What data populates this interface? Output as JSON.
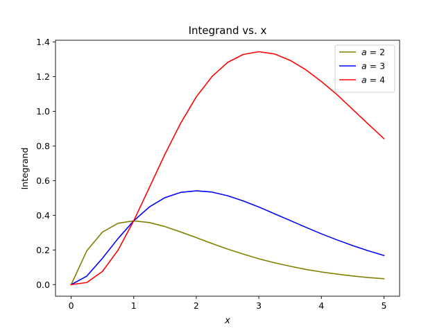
{
  "chart_data": {
    "type": "line",
    "title": "Integrand vs. x",
    "xlabel": "x",
    "ylabel": "Integrand",
    "xlim": [
      -0.25,
      5.25
    ],
    "ylim": [
      -0.067,
      1.41
    ],
    "xticks": [
      0,
      1,
      2,
      3,
      4,
      5
    ],
    "xtick_labels": [
      "0",
      "1",
      "2",
      "3",
      "4",
      "5"
    ],
    "yticks": [
      0.0,
      0.2,
      0.4,
      0.6,
      0.8,
      1.0,
      1.2,
      1.4
    ],
    "ytick_labels": [
      "0.0",
      "0.2",
      "0.4",
      "0.6",
      "0.8",
      "1.0",
      "1.2",
      "1.4"
    ],
    "grid": false,
    "legend_position": "top-right",
    "x": [
      0,
      0.25,
      0.5,
      0.75,
      1,
      1.25,
      1.5,
      1.75,
      2,
      2.25,
      2.5,
      2.75,
      3,
      3.25,
      3.5,
      3.75,
      4,
      4.25,
      4.5,
      4.75,
      5
    ],
    "series": [
      {
        "name": "a = 2",
        "legend_var": "a",
        "legend_val": "2",
        "color": "#808000",
        "values": [
          0,
          0.195,
          0.303,
          0.354,
          0.368,
          0.358,
          0.335,
          0.304,
          0.271,
          0.237,
          0.205,
          0.176,
          0.149,
          0.126,
          0.106,
          0.088,
          0.073,
          0.061,
          0.05,
          0.041,
          0.034
        ]
      },
      {
        "name": "a = 3",
        "legend_var": "a",
        "legend_val": "3",
        "color": "#0000ff",
        "values": [
          0,
          0.049,
          0.152,
          0.266,
          0.368,
          0.448,
          0.502,
          0.532,
          0.541,
          0.534,
          0.513,
          0.483,
          0.448,
          0.409,
          0.37,
          0.331,
          0.293,
          0.258,
          0.225,
          0.195,
          0.168
        ]
      },
      {
        "name": "a = 4",
        "legend_var": "a",
        "legend_val": "4",
        "color": "#ff0000",
        "values": [
          0,
          0.012,
          0.076,
          0.199,
          0.368,
          0.56,
          0.753,
          0.931,
          1.083,
          1.2,
          1.282,
          1.328,
          1.344,
          1.331,
          1.294,
          1.24,
          1.172,
          1.096,
          1.011,
          0.926,
          0.842
        ]
      }
    ]
  }
}
